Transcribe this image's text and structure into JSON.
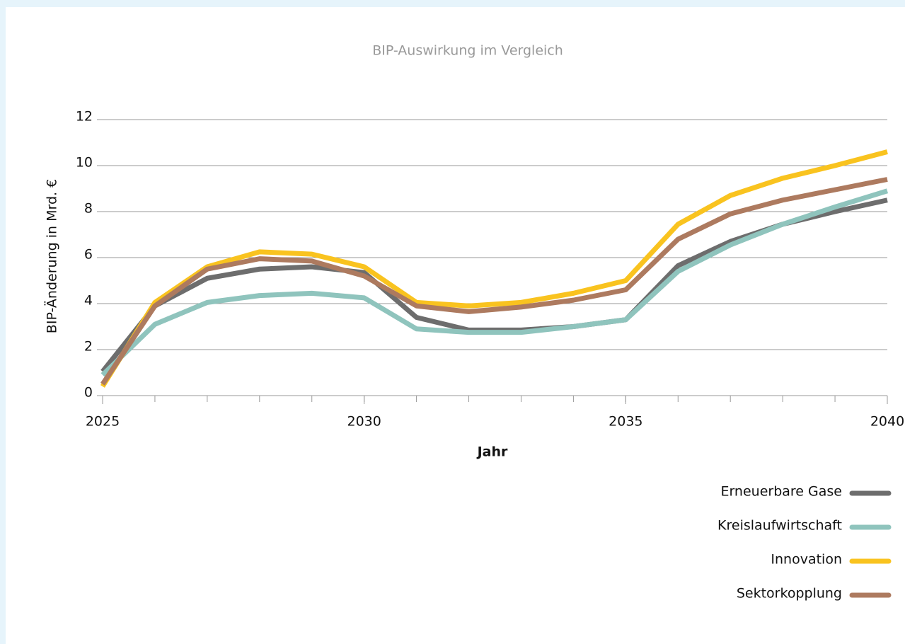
{
  "chart_data": {
    "type": "line",
    "title": "BIP-Auswirkung im Vergleich",
    "x_label": "Jahr",
    "y_label": "BIP-Änderung in Mrd. €",
    "x": [
      2025,
      2026,
      2027,
      2028,
      2029,
      2030,
      2031,
      2032,
      2033,
      2034,
      2035,
      2036,
      2037,
      2038,
      2039,
      2040
    ],
    "xlim": [
      2025,
      2040
    ],
    "xticks": [
      2025,
      2030,
      2035,
      2040
    ],
    "ylim": [
      0,
      12
    ],
    "yticks": [
      0,
      2,
      4,
      6,
      8,
      10,
      12
    ],
    "grid": true,
    "legend": "bottom-right",
    "series": [
      {
        "name": "Erneuerbare Gase",
        "color": "#6d6d6d",
        "values": [
          1.05,
          3.9,
          5.1,
          5.5,
          5.6,
          5.35,
          3.4,
          2.85,
          2.85,
          3.0,
          3.3,
          5.65,
          6.7,
          7.45,
          8.0,
          8.5
        ]
      },
      {
        "name": "Kreislaufwirtschaft",
        "color": "#8fc4bd",
        "values": [
          0.9,
          3.1,
          4.05,
          4.35,
          4.45,
          4.25,
          2.9,
          2.75,
          2.75,
          3.0,
          3.3,
          5.4,
          6.55,
          7.45,
          8.2,
          8.9
        ]
      },
      {
        "name": "Innovation",
        "color": "#f9c31f",
        "values": [
          0.4,
          4.05,
          5.6,
          6.25,
          6.15,
          5.6,
          4.05,
          3.9,
          4.05,
          4.45,
          5.0,
          7.45,
          8.7,
          9.45,
          10.0,
          10.6
        ]
      },
      {
        "name": "Sektorkopplung",
        "color": "#ad7a5f",
        "values": [
          0.5,
          3.9,
          5.5,
          5.95,
          5.85,
          5.2,
          3.9,
          3.65,
          3.85,
          4.15,
          4.6,
          6.8,
          7.9,
          8.5,
          8.95,
          9.4
        ]
      }
    ]
  }
}
